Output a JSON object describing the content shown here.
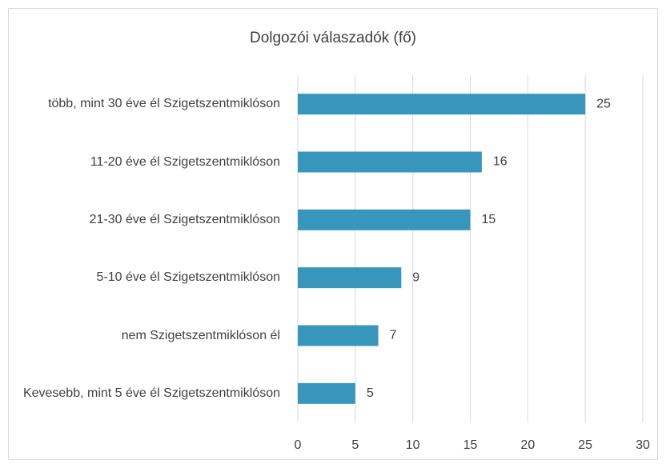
{
  "chart_data": {
    "type": "bar",
    "orientation": "horizontal",
    "title": "Dolgozói válaszadók (fő)",
    "categories": [
      "több, mint 30 éve él Szigetszentmiklóson",
      "11-20 éve él Szigetszentmiklóson",
      "21-30 éve él Szigetszentmiklóson",
      "5-10 éve él Szigetszentmiklóson",
      "nem Szigetszentmiklóson él",
      "Kevesebb, mint 5 éve él Szigetszentmiklóson"
    ],
    "values": [
      25,
      16,
      15,
      9,
      7,
      5
    ],
    "color": "#3896bd",
    "xlim": [
      0,
      30
    ],
    "xticks": [
      0,
      5,
      10,
      15,
      20,
      25,
      30
    ],
    "grid": true
  }
}
